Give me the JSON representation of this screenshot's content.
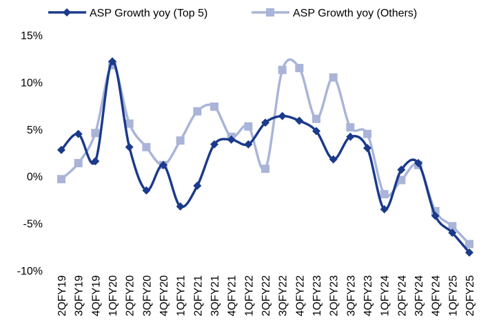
{
  "chart_data": {
    "type": "line",
    "categories": [
      "2QFY19",
      "3QFY19",
      "4QFY19",
      "1QFY20",
      "2QFY20",
      "3QFY20",
      "4QFY20",
      "1QFY21",
      "2QFY21",
      "3QFY21",
      "4QFY21",
      "1QFY22",
      "2QFY22",
      "3QFY22",
      "4QFY22",
      "1QFY23",
      "2QFY23",
      "3QFY23",
      "4QFY23",
      "1QFY24",
      "2QFY24",
      "3QFY24",
      "4QFY24",
      "1QFY25",
      "2QFY25"
    ],
    "series": [
      {
        "name": "ASP Growth yoy (Top 5)",
        "color": "#1b3a8c",
        "marker": "diamond",
        "values": [
          2.8,
          4.5,
          1.6,
          12.2,
          3.1,
          -1.5,
          1.2,
          -3.2,
          -1.0,
          3.4,
          3.9,
          3.4,
          5.7,
          6.4,
          5.9,
          4.8,
          1.8,
          4.2,
          3.0,
          -3.5,
          0.7,
          1.4,
          -4.2,
          -6.0,
          -8.1
        ]
      },
      {
        "name": "ASP Growth yoy (Others)",
        "color": "#a9b4d8",
        "marker": "square",
        "values": [
          -0.3,
          1.4,
          4.6,
          11.8,
          5.6,
          3.1,
          1.2,
          3.8,
          6.9,
          7.4,
          4.2,
          5.3,
          0.8,
          11.3,
          11.5,
          6.1,
          10.5,
          5.2,
          4.5,
          -1.9,
          -0.4,
          1.2,
          -3.7,
          -5.3,
          -7.2
        ]
      }
    ],
    "ylim": [
      -10,
      15
    ],
    "yticks": [
      {
        "value": -10,
        "label": "-10%"
      },
      {
        "value": -5,
        "label": "-5%"
      },
      {
        "value": 0,
        "label": "0%"
      },
      {
        "value": 5,
        "label": "5%"
      },
      {
        "value": 10,
        "label": "10%"
      },
      {
        "value": 15,
        "label": "15%"
      }
    ],
    "smooth": true,
    "grid": false,
    "legend": "top"
  }
}
